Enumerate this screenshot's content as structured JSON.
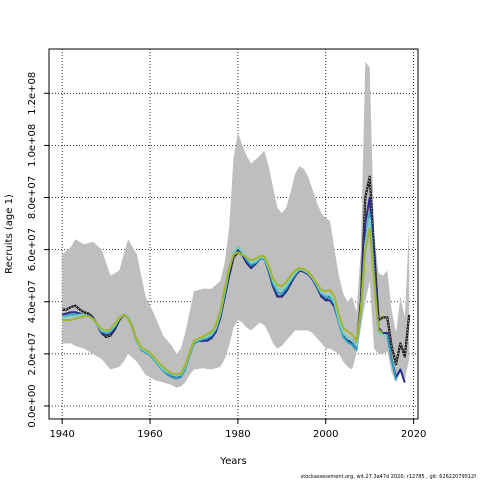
{
  "chart_data": {
    "type": "line",
    "xlabel": "Years",
    "ylabel": "Recruits (age 1)",
    "xlim": [
      1937,
      2021
    ],
    "ylim": [
      -5000000,
      137000000
    ],
    "xticks": [
      1940,
      1960,
      1980,
      2000,
      2020
    ],
    "xtick_labels": [
      "1940",
      "1960",
      "1980",
      "2000",
      "2020"
    ],
    "yticks": [
      0,
      20000000,
      40000000,
      60000000,
      80000000,
      100000000,
      120000000
    ],
    "ytick_labels": [
      "0.0e+00",
      "2.0e+07",
      "4.0e+07",
      "6.0e+07",
      "8.0e+07",
      "1.0e+08",
      "1.2e+08"
    ],
    "grid": true,
    "band": {
      "color": "#bebebe",
      "x": [
        1940,
        1942,
        1943,
        1945,
        1947,
        1949,
        1950,
        1951,
        1953,
        1954,
        1955,
        1957,
        1959,
        1961,
        1963,
        1965,
        1966,
        1967,
        1968,
        1969,
        1970,
        1972,
        1974,
        1976,
        1977,
        1978,
        1979,
        1980,
        1981,
        1982,
        1983,
        1985,
        1986,
        1987,
        1988,
        1989,
        1990,
        1991,
        1992,
        1993,
        1994,
        1995,
        1996,
        1997,
        1998,
        1999,
        2000,
        2001,
        2002,
        2003,
        2004,
        2005,
        2006,
        2007,
        2008,
        2009,
        2010,
        2011,
        2012,
        2013,
        2014,
        2015,
        2016,
        2017,
        2018,
        2019
      ],
      "upper": [
        58000000,
        61000000,
        64000000,
        62000000,
        63000000,
        60000000,
        55000000,
        50000000,
        52000000,
        58000000,
        64000000,
        58000000,
        42000000,
        35000000,
        27000000,
        23000000,
        20000000,
        22000000,
        28000000,
        36000000,
        44000000,
        45000000,
        45000000,
        48000000,
        55000000,
        68000000,
        95000000,
        105000000,
        100000000,
        96000000,
        93000000,
        96000000,
        98000000,
        92000000,
        84000000,
        76000000,
        74000000,
        76000000,
        82000000,
        89000000,
        92000000,
        91000000,
        88000000,
        83000000,
        78000000,
        74000000,
        72000000,
        71000000,
        60000000,
        50000000,
        43000000,
        40000000,
        42000000,
        36000000,
        60000000,
        132000000,
        130000000,
        66000000,
        51000000,
        50000000,
        52000000,
        37000000,
        28000000,
        42000000,
        34000000,
        70000000
      ],
      "lower": [
        24000000,
        24000000,
        23000000,
        22000000,
        20000000,
        18000000,
        16000000,
        14000000,
        15000000,
        17000000,
        20000000,
        17000000,
        12000000,
        10000000,
        9000000,
        8000000,
        7000000,
        7500000,
        9000000,
        12000000,
        14000000,
        14500000,
        14000000,
        15000000,
        18000000,
        23000000,
        30000000,
        33000000,
        32000000,
        30000000,
        29000000,
        32000000,
        31000000,
        28000000,
        24000000,
        22000000,
        23000000,
        25000000,
        27000000,
        29000000,
        29000000,
        29000000,
        29000000,
        28000000,
        26000000,
        24000000,
        22000000,
        22000000,
        21000000,
        20000000,
        17000000,
        15000000,
        14000000,
        20000000,
        30000000,
        40000000,
        48000000,
        22000000,
        20000000,
        20000000,
        21000000,
        13000000,
        9000000,
        13000000,
        10000000,
        18000000
      ]
    },
    "x": [
      1940,
      1941,
      1942,
      1943,
      1944,
      1945,
      1946,
      1947,
      1948,
      1949,
      1950,
      1951,
      1952,
      1953,
      1954,
      1955,
      1956,
      1957,
      1958,
      1959,
      1960,
      1961,
      1962,
      1963,
      1964,
      1965,
      1966,
      1967,
      1968,
      1969,
      1970,
      1971,
      1972,
      1973,
      1974,
      1975,
      1976,
      1977,
      1978,
      1979,
      1980,
      1981,
      1982,
      1983,
      1984,
      1985,
      1986,
      1987,
      1988,
      1989,
      1990,
      1991,
      1992,
      1993,
      1994,
      1995,
      1996,
      1997,
      1998,
      1999,
      2000,
      2001,
      2002,
      2003,
      2004,
      2005,
      2006,
      2007,
      2008,
      2009,
      2010,
      2011,
      2012,
      2013,
      2014,
      2015,
      2016,
      2017,
      2018,
      2019
    ],
    "series": [
      {
        "color": "#1a1a1a",
        "dotted": true,
        "lwd": 2.2,
        "start": 1940,
        "values": [
          37000000,
          37000000,
          38000000,
          38500000,
          37000000,
          36000000,
          35500000,
          34000000,
          31000000,
          28000000,
          26500000,
          27000000,
          29500000,
          33000000,
          35000000,
          34000000,
          30000000,
          25000000,
          22000000,
          21000000,
          20000000,
          18000000,
          16000000,
          14500000,
          13000000,
          12000000,
          11500000,
          12000000,
          15000000,
          20000000,
          24000000,
          25000000,
          25000000,
          25500000,
          26500000,
          29000000,
          34000000,
          42000000,
          50000000,
          57000000,
          59000000,
          58000000,
          55000000,
          53000000,
          55000000,
          57000000,
          57000000,
          52000000,
          46000000,
          42000000,
          42000000,
          44000000,
          47000000,
          50000000,
          52000000,
          52000000,
          51000000,
          49000000,
          46000000,
          42000000,
          41000000,
          42000000,
          40000000,
          33000000,
          27000000,
          25500000,
          25000000,
          23000000,
          40000000,
          80000000,
          88000000,
          60000000,
          33000000,
          34000000,
          34000000,
          23000000,
          16000000,
          24000000,
          19000000,
          35000000
        ]
      },
      {
        "color": "#2a2a8a",
        "dotted": false,
        "lwd": 2,
        "start": 1940,
        "values": [
          35000000,
          35500000,
          36000000,
          36000000,
          35500000,
          35000000,
          35000000,
          34000000,
          31000000,
          28000000,
          27000000,
          27500000,
          30000000,
          33500000,
          35000000,
          34000000,
          30000000,
          25000000,
          22000000,
          21000000,
          20000000,
          18000000,
          16000000,
          14000000,
          12500000,
          11500000,
          11000000,
          11500000,
          14500000,
          19500000,
          24000000,
          25000000,
          25000000,
          25000000,
          26000000,
          28500000,
          34000000,
          42000000,
          51000000,
          58000000,
          60000000,
          58000000,
          55000000,
          53000000,
          54500000,
          56500000,
          56500000,
          52000000,
          46000000,
          42000000,
          42000000,
          44000000,
          47000000,
          50000000,
          52000000,
          51500000,
          50500000,
          48500000,
          45500000,
          42000000,
          40500000,
          40500000,
          38000000,
          32000000,
          27000000,
          25000000,
          24000000,
          22000000,
          38000000,
          70000000,
          80000000,
          55000000,
          30000000,
          28000000,
          28000000,
          18000000,
          11000000,
          14000000,
          9000000,
          null
        ]
      },
      {
        "color": "#2a9ec0",
        "dotted": false,
        "lwd": 2,
        "start": 1940,
        "values": [
          34000000,
          34500000,
          35000000,
          35000000,
          35000000,
          35000000,
          34500000,
          33500000,
          31000000,
          28500000,
          28000000,
          28500000,
          30500000,
          33500000,
          35000000,
          34000000,
          30000000,
          25000000,
          21500000,
          20500000,
          19500000,
          17500000,
          15500000,
          13500000,
          12000000,
          11000000,
          10500000,
          11000000,
          14000000,
          19500000,
          24000000,
          25000000,
          25500000,
          26000000,
          27000000,
          29500000,
          35000000,
          43000000,
          52000000,
          58500000,
          61000000,
          59000000,
          56000000,
          54000000,
          55000000,
          56500000,
          56500000,
          52500000,
          47000000,
          43500000,
          43000000,
          45000000,
          48000000,
          50500000,
          52500000,
          52000000,
          51000000,
          49000000,
          46000000,
          43000000,
          41500000,
          41500000,
          39000000,
          32000000,
          26500000,
          24500000,
          23500000,
          21500000,
          36000000,
          62000000,
          74000000,
          50000000,
          28000000,
          27000000,
          27000000,
          18000000,
          10000000,
          null,
          null,
          null
        ]
      },
      {
        "color": "#7ccfc2",
        "dotted": false,
        "lwd": 2,
        "start": 1940,
        "values": [
          34000000,
          34000000,
          34500000,
          34500000,
          35000000,
          35000000,
          34500000,
          33500000,
          31000000,
          29000000,
          28500000,
          29000000,
          31000000,
          33500000,
          35000000,
          34000000,
          30000000,
          25000000,
          22000000,
          21000000,
          20000000,
          18000000,
          16000000,
          14000000,
          13000000,
          12000000,
          11500000,
          12000000,
          15000000,
          20000000,
          24500000,
          25500000,
          26000000,
          26500000,
          27500000,
          30000000,
          35500000,
          44000000,
          52500000,
          58500000,
          61000000,
          59000000,
          57000000,
          55000000,
          55500000,
          57000000,
          57000000,
          53000000,
          48000000,
          45000000,
          44500000,
          46000000,
          48500000,
          51000000,
          52500000,
          52000000,
          51000000,
          49000000,
          46500000,
          43500000,
          42500000,
          42500000,
          40000000,
          33000000,
          28000000,
          26000000,
          25000000,
          23000000,
          37000000,
          62000000,
          72000000,
          48000000,
          28000000,
          27000000,
          27000000,
          null,
          null,
          null,
          null,
          null
        ]
      },
      {
        "color": "#a3b52a",
        "dotted": false,
        "lwd": 2,
        "start": 1940,
        "values": [
          33000000,
          33000000,
          33000000,
          33500000,
          34000000,
          34500000,
          34500000,
          33500000,
          31500000,
          29500000,
          29000000,
          29500000,
          31500000,
          34000000,
          35000000,
          33500000,
          30000000,
          25500000,
          22500000,
          21500000,
          20500000,
          18500000,
          16500000,
          15000000,
          13500000,
          12500000,
          12000000,
          12500000,
          15500000,
          20500000,
          25000000,
          26000000,
          26500000,
          27500000,
          28500000,
          31000000,
          36500000,
          45000000,
          53000000,
          58000000,
          59000000,
          58000000,
          57000000,
          56000000,
          56500000,
          57500000,
          57500000,
          54000000,
          49000000,
          46500000,
          46000000,
          47500000,
          50000000,
          52000000,
          53000000,
          52500000,
          51500000,
          49500000,
          47000000,
          44500000,
          44000000,
          44500000,
          42000000,
          35000000,
          30000000,
          28500000,
          27500000,
          25000000,
          37000000,
          60000000,
          68000000,
          48000000,
          29000000,
          28000000,
          null,
          null,
          null,
          null,
          null,
          null
        ]
      }
    ]
  },
  "footer": "stockassessment.org, wit.27.3a47d 2020, r12785 , git: 62622079512f"
}
